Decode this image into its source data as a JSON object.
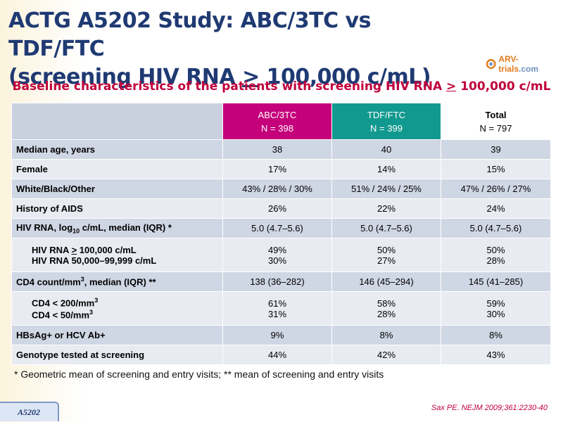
{
  "title": {
    "line1": "ACTG A5202 Study: ABC/3TC vs TDF/FTC",
    "line2_pre": "(screening HIV RNA ",
    "line2_sym": ">",
    "line2_post": " 100,000 c/mL)"
  },
  "logo": {
    "text_a": "ARV-trials",
    "text_b": ".com"
  },
  "subtitle": {
    "pre": "Baseline characteristics of the patients with screening HIV RNA ",
    "sym": ">",
    "post": " 100,000 c/mL"
  },
  "table": {
    "headers": [
      {
        "name": "ABC/3TC",
        "n": "N = 398"
      },
      {
        "name": "TDF/FTC",
        "n": "N = 399"
      },
      {
        "name": "Total",
        "n": "N = 797"
      }
    ],
    "rows": [
      {
        "label": "Median age, years",
        "values": [
          "38",
          "40",
          "39"
        ]
      },
      {
        "label": "Female",
        "values": [
          "17%",
          "14%",
          "15%"
        ]
      },
      {
        "label": "White/Black/Other",
        "values": [
          "43% / 28% / 30%",
          "51% / 24% / 25%",
          "47% / 26% / 27%"
        ]
      },
      {
        "label": "History of AIDS",
        "values": [
          "26%",
          "22%",
          "24%"
        ]
      },
      {
        "label_pre": "HIV RNA, log",
        "label_sub": "10",
        "label_post": " c/mL, median (IQR) *",
        "values": [
          "5.0 (4.7–5.6)",
          "5.0 (4.7–5.6)",
          "5.0 (4.7–5.6)"
        ]
      },
      {
        "line1_pre": "HIV RNA ",
        "line1_sym": ">",
        "line1_post": " 100,000 c/mL",
        "line2": "HIV RNA 50,000–99,999 c/mL",
        "values1": [
          "49%",
          "50%",
          "50%"
        ],
        "values2": [
          "30%",
          "27%",
          "28%"
        ]
      },
      {
        "label_pre": "CD4 count/mm",
        "label_sup": "3",
        "label_post": ", median (IQR) **",
        "values": [
          "138 (36–282)",
          "146 (45–294)",
          "145 (41–285)"
        ]
      },
      {
        "line1_pre": "CD4 < 200/mm",
        "line1_sup": "3",
        "line2_pre": "CD4 < 50/mm",
        "line2_sup": "3",
        "values1": [
          "61%",
          "58%",
          "59%"
        ],
        "values2": [
          "31%",
          "28%",
          "30%"
        ]
      },
      {
        "label": "HBsAg+ or HCV Ab+",
        "values": [
          "9%",
          "8%",
          "8%"
        ]
      },
      {
        "label": "Genotype tested at screening",
        "values": [
          "44%",
          "42%",
          "43%"
        ]
      }
    ]
  },
  "footnote": "* Geometric mean of screening and entry visits; ** mean of screening and entry visits",
  "badge": "A5202",
  "reference": "Sax PE. NEJM 2009;361:2230-40",
  "colors": {
    "title": "#1f3a73",
    "accent": "#c0003a",
    "abc": "#c4007a",
    "tdf": "#12998f"
  }
}
